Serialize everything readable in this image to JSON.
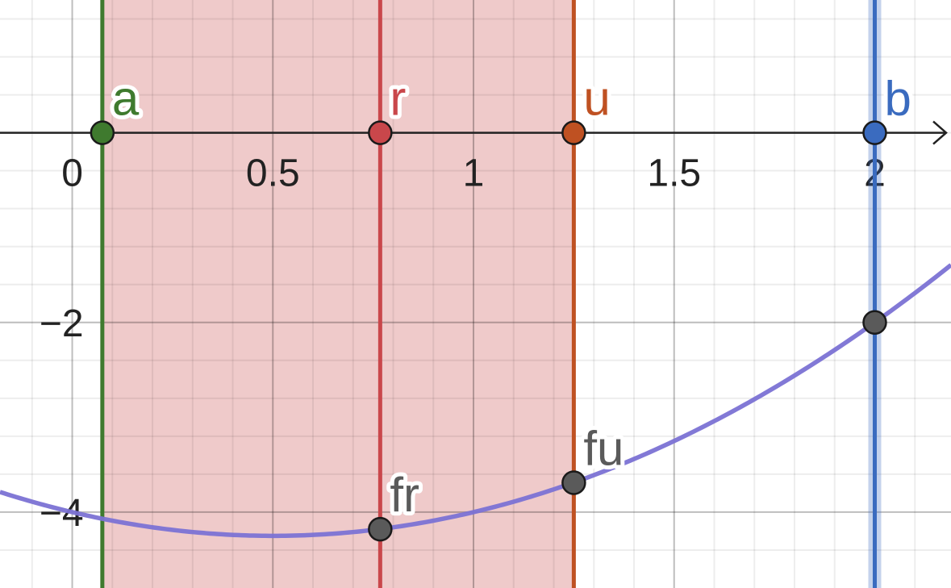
{
  "chart_data": {
    "type": "line",
    "title": "",
    "xlabel": "",
    "ylabel": "",
    "xlim": [
      -0.18,
      2.19
    ],
    "ylim": [
      -4.8,
      1.4
    ],
    "x_ticks": [
      {
        "value": 0,
        "label": "0"
      },
      {
        "value": 0.5,
        "label": "0.5"
      },
      {
        "value": 1,
        "label": "1"
      },
      {
        "value": 1.5,
        "label": "1.5"
      },
      {
        "value": 2,
        "label": "2"
      }
    ],
    "y_ticks": [
      {
        "value": -2,
        "label": "−2"
      },
      {
        "value": -4,
        "label": "−4"
      }
    ],
    "grid": true,
    "shaded_interval": {
      "from": 0.075,
      "to": 1.25,
      "color": "#e8b4b4"
    },
    "curve": {
      "function": "x^2 - x - 4",
      "color": "#7b72d4"
    },
    "vertical_lines": [
      {
        "x": 0.075,
        "color": "#3f7a2e"
      },
      {
        "x": 0.7675,
        "color": "#c9474b"
      },
      {
        "x": 1.25,
        "color": "#bf5122"
      },
      {
        "x": 2,
        "color": "#3a6bbf"
      }
    ],
    "points": [
      {
        "label": "a",
        "x": 0.075,
        "y": 0,
        "color": "#3f7a2e"
      },
      {
        "label": "r",
        "x": 0.7675,
        "y": 0,
        "color": "#c9474b"
      },
      {
        "label": "u",
        "x": 1.25,
        "y": 0,
        "color": "#bf5122"
      },
      {
        "label": "b",
        "x": 2,
        "y": 0,
        "color": "#3a6bbf"
      },
      {
        "label": "fr",
        "x": 0.7675,
        "y": -4.18,
        "color": "#5a5a5a"
      },
      {
        "label": "fu",
        "x": 1.25,
        "y": -3.69,
        "color": "#5a5a5a"
      },
      {
        "label": "",
        "x": 2,
        "y": -2,
        "color": "#5a5a5a"
      }
    ]
  }
}
